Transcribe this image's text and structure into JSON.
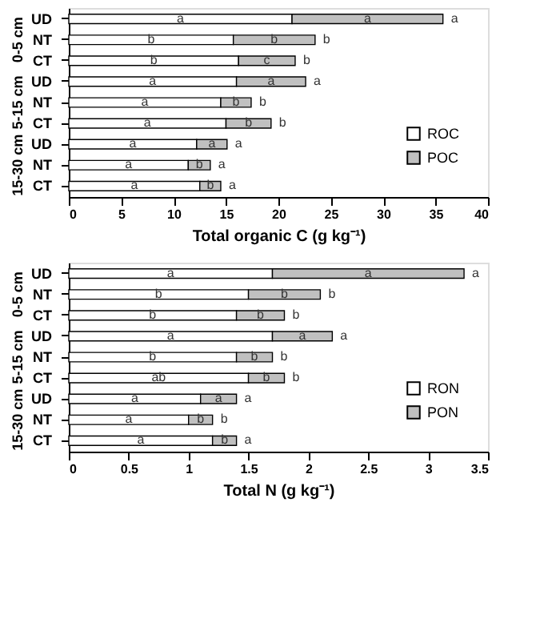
{
  "chart_data": [
    {
      "type": "bar",
      "orientation": "horizontal",
      "stacked": true,
      "xlabel": "Total organic C (g kg⁻¹)",
      "categories": [
        "UD",
        "NT",
        "CT",
        "UD",
        "NT",
        "CT",
        "UD",
        "NT",
        "CT"
      ],
      "annotations": [
        "0-5 cm",
        "5-15 cm",
        "15-30 cm"
      ],
      "series": [
        {
          "name": "ROC",
          "color": "#ffffff",
          "values": [
            21.3,
            15.7,
            16.2,
            16.0,
            14.5,
            15.0,
            12.2,
            11.4,
            12.5
          ],
          "value_labels": [
            "a",
            "b",
            "b",
            "a",
            "a",
            "a",
            "a",
            "a",
            "a"
          ]
        },
        {
          "name": "POC",
          "color": "#c0c0c0",
          "values": [
            14.4,
            7.8,
            5.4,
            6.6,
            2.9,
            4.3,
            2.9,
            2.1,
            2.0
          ],
          "value_labels": [
            "a",
            "b",
            "c",
            "a",
            "b",
            "b",
            "a",
            "b",
            "b"
          ]
        }
      ],
      "totals": [
        "a",
        "b",
        "b",
        "a",
        "b",
        "b",
        "a",
        "a",
        "a"
      ],
      "xlim": [
        0,
        40
      ],
      "xticks": [
        0,
        5,
        10,
        15,
        20,
        25,
        30,
        35,
        40
      ],
      "grid": false,
      "legend": "bottom right"
    },
    {
      "type": "bar",
      "orientation": "horizontal",
      "stacked": true,
      "xlabel": "Total N (g kg⁻¹)",
      "categories": [
        "UD",
        "NT",
        "CT",
        "UD",
        "NT",
        "CT",
        "UD",
        "NT",
        "CT"
      ],
      "annotations": [
        "0-5 cm",
        "5-15 cm",
        "15-30 cm"
      ],
      "series": [
        {
          "name": "RON",
          "color": "#ffffff",
          "values": [
            1.7,
            1.5,
            1.4,
            1.7,
            1.4,
            1.5,
            1.1,
            1.0,
            1.2
          ],
          "value_labels": [
            "a",
            "b",
            "b",
            "a",
            "b",
            "ab",
            "a",
            "a",
            "a"
          ]
        },
        {
          "name": "PON",
          "color": "#c0c0c0",
          "values": [
            1.6,
            0.6,
            0.4,
            0.5,
            0.3,
            0.3,
            0.3,
            0.2,
            0.2
          ],
          "value_labels": [
            "a",
            "b",
            "b",
            "a",
            "b",
            "b",
            "a",
            "b",
            "b"
          ]
        }
      ],
      "totals": [
        "a",
        "b",
        "b",
        "a",
        "b",
        "b",
        "a",
        "b",
        "a"
      ],
      "xlim": [
        0,
        3.5
      ],
      "xticks": [
        0,
        0.5,
        1,
        1.5,
        2,
        2.5,
        3,
        3.5
      ],
      "grid": false,
      "legend": "bottom right"
    }
  ]
}
